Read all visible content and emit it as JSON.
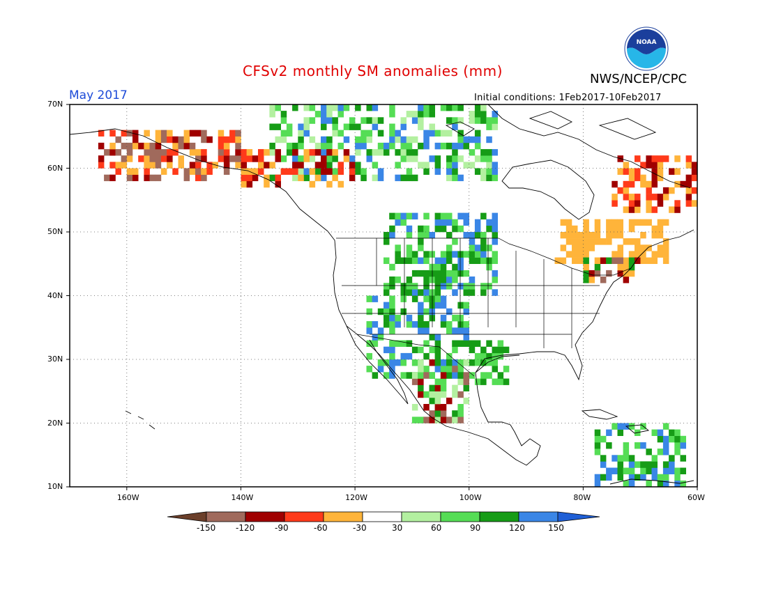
{
  "header": {
    "title": "CFSv2 monthly SM anomalies (mm)",
    "agency": "NWS/NCEP/CPC",
    "valid_month": "May 2017",
    "initial_conditions": "Initial conditions: 1Feb2017-10Feb2017",
    "logo_text": "NOAA"
  },
  "axes": {
    "lat_labels": [
      "70N",
      "60N",
      "50N",
      "40N",
      "30N",
      "20N",
      "10N"
    ],
    "lat_values": [
      70,
      60,
      50,
      40,
      30,
      20,
      10
    ],
    "lon_labels": [
      "160W",
      "140W",
      "120W",
      "100W",
      "80W",
      "60W"
    ],
    "lon_values": [
      -160,
      -140,
      -120,
      -100,
      -80,
      -60
    ],
    "lon_range": [
      -170,
      -60
    ],
    "lat_range": [
      10,
      70
    ],
    "gridlines": "dotted"
  },
  "colorbar": {
    "labels": [
      "-150",
      "-120",
      "-90",
      "-60",
      "-30",
      "30",
      "60",
      "90",
      "120",
      "150"
    ],
    "colors": [
      "#6b3f2a",
      "#a06a5c",
      "#a00000",
      "#ff3a1a",
      "#ffb43a",
      "#ffffff",
      "#b3f0a0",
      "#55dd55",
      "#169c16",
      "#3a86e6",
      "#1f5fd6"
    ]
  },
  "anomaly_regions": [
    {
      "name": "northern-canada-greens",
      "lon": [
        -135,
        -95
      ],
      "lat": [
        58,
        70
      ],
      "classes": [
        6,
        7,
        8,
        9
      ]
    },
    {
      "name": "alaska-dry",
      "lon": [
        -165,
        -140
      ],
      "lat": [
        58,
        66
      ],
      "classes": [
        1,
        2,
        3,
        4
      ]
    },
    {
      "name": "yukon-dry",
      "lon": [
        -140,
        -120
      ],
      "lat": [
        57,
        63
      ],
      "classes": [
        2,
        3,
        4
      ]
    },
    {
      "name": "northern-plains-wet",
      "lon": [
        -115,
        -95
      ],
      "lat": [
        40,
        53
      ],
      "classes": [
        7,
        8,
        9
      ]
    },
    {
      "name": "southern-rockies-wet",
      "lon": [
        -118,
        -100
      ],
      "lat": [
        27,
        40
      ],
      "classes": [
        7,
        8,
        9
      ]
    },
    {
      "name": "texas-wet",
      "lon": [
        -100,
        -93
      ],
      "lat": [
        26,
        33
      ],
      "classes": [
        7,
        8
      ]
    },
    {
      "name": "mexico-mixed",
      "lon": [
        -110,
        -100
      ],
      "lat": [
        20,
        30
      ],
      "classes": [
        1,
        2,
        6,
        7,
        8
      ]
    },
    {
      "name": "east-canada-dry",
      "lon": [
        -75,
        -60
      ],
      "lat": [
        53,
        62
      ],
      "classes": [
        2,
        3,
        4
      ]
    },
    {
      "name": "quebec-dry",
      "lon": [
        -85,
        -65
      ],
      "lat": [
        45,
        52
      ],
      "classes": [
        4
      ]
    },
    {
      "name": "great-lakes-mixed",
      "lon": [
        -80,
        -70
      ],
      "lat": [
        42,
        46
      ],
      "classes": [
        1,
        2,
        4,
        8
      ]
    },
    {
      "name": "caribbean-wet",
      "lon": [
        -78,
        -62
      ],
      "lat": [
        10,
        20
      ],
      "classes": [
        7,
        8,
        9
      ]
    }
  ]
}
